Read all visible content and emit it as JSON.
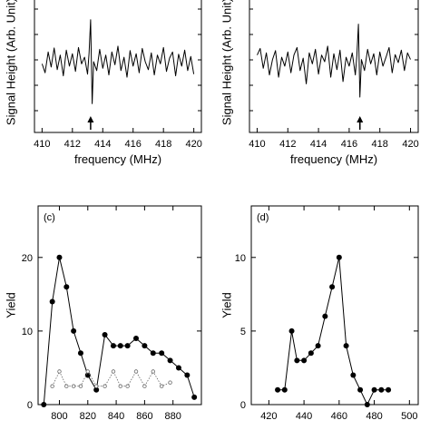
{
  "colors": {
    "line": "#000000",
    "secondary": "#666666",
    "frame": "#000000",
    "background": "#ffffff"
  },
  "chart_data": [
    {
      "panel": "a",
      "type": "line",
      "xlabel": "frequency (MHz)",
      "ylabel": "Signal Height (Arb. Unit)",
      "xlim": [
        409.5,
        420.5
      ],
      "xticks": [
        410,
        412,
        414,
        416,
        418,
        420
      ],
      "grid": false,
      "annotations": [
        {
          "type": "arrow",
          "x": 413.2
        }
      ],
      "series": [
        {
          "x": [
            410.0,
            410.2,
            410.4,
            410.6,
            410.8,
            411.0,
            411.2,
            411.4,
            411.6,
            411.8,
            412.0,
            412.2,
            412.4,
            412.6,
            412.8,
            413.0,
            413.1,
            413.2,
            413.3,
            413.4,
            413.6,
            413.8,
            414.0,
            414.2,
            414.4,
            414.6,
            414.8,
            415.0,
            415.2,
            415.4,
            415.6,
            415.8,
            416.0,
            416.2,
            416.4,
            416.6,
            416.8,
            417.0,
            417.2,
            417.4,
            417.6,
            417.8,
            418.0,
            418.2,
            418.4,
            418.6,
            418.8,
            419.0,
            419.2,
            419.4,
            419.6,
            419.8,
            420.0
          ],
          "values": [
            0.35,
            0.15,
            0.62,
            0.28,
            0.71,
            0.22,
            0.55,
            0.08,
            0.66,
            0.3,
            0.58,
            0.18,
            0.72,
            0.35,
            0.5,
            0.12,
            0.6,
            1.35,
            -0.55,
            0.4,
            0.2,
            0.68,
            0.25,
            0.55,
            0.1,
            0.62,
            0.33,
            0.75,
            0.2,
            0.5,
            0.05,
            0.65,
            0.3,
            0.58,
            0.15,
            0.7,
            0.4,
            0.22,
            0.6,
            0.1,
            0.55,
            0.35,
            0.72,
            0.18,
            0.48,
            0.62,
            0.08,
            0.57,
            0.3,
            0.66,
            0.2,
            0.52,
            0.12
          ]
        }
      ]
    },
    {
      "panel": "b",
      "type": "line",
      "xlabel": "frequency (MHz)",
      "ylabel": "Signal Height (Arb. Unit)",
      "xlim": [
        409.5,
        420.5
      ],
      "xticks": [
        410,
        412,
        414,
        416,
        418,
        420
      ],
      "grid": false,
      "annotations": [
        {
          "type": "arrow",
          "x": 416.7
        }
      ],
      "series": [
        {
          "x": [
            410.0,
            410.2,
            410.4,
            410.6,
            410.8,
            411.0,
            411.2,
            411.4,
            411.6,
            411.8,
            412.0,
            412.2,
            412.4,
            412.6,
            412.8,
            413.0,
            413.2,
            413.4,
            413.6,
            413.8,
            414.0,
            414.2,
            414.4,
            414.6,
            414.8,
            415.0,
            415.2,
            415.4,
            415.6,
            415.8,
            416.0,
            416.2,
            416.4,
            416.5,
            416.6,
            416.7,
            416.8,
            417.0,
            417.2,
            417.4,
            417.6,
            417.8,
            418.0,
            418.2,
            418.4,
            418.6,
            418.8,
            419.0,
            419.2,
            419.4,
            419.6,
            419.8,
            420.0
          ],
          "values": [
            0.55,
            0.7,
            0.25,
            0.6,
            0.1,
            0.45,
            0.65,
            0.05,
            0.5,
            0.3,
            0.62,
            0.15,
            0.55,
            0.72,
            0.2,
            0.48,
            -0.1,
            0.6,
            0.35,
            0.68,
            0.12,
            0.55,
            0.4,
            0.75,
            0.05,
            0.58,
            0.22,
            0.66,
            -0.05,
            0.5,
            0.3,
            0.6,
            0.1,
            0.55,
            1.25,
            -0.4,
            0.45,
            0.2,
            0.68,
            0.35,
            0.58,
            0.1,
            0.62,
            0.3,
            0.5,
            0.72,
            0.15,
            0.56,
            0.38,
            0.66,
            0.2,
            0.6,
            0.45
          ]
        }
      ]
    },
    {
      "panel": "c",
      "panel_label": "(c)",
      "type": "line",
      "ylabel": "Yield",
      "xlim": [
        785,
        900
      ],
      "ylim": [
        0,
        27
      ],
      "xticks": [
        800,
        820,
        840,
        860,
        880
      ],
      "yticks": [
        0,
        10,
        20
      ],
      "grid": false,
      "series": [
        {
          "style": "solid-filled-circles",
          "x": [
            789,
            795,
            800,
            805,
            810,
            815,
            820,
            826,
            832,
            838,
            843,
            848,
            854,
            860,
            866,
            872,
            878,
            884,
            890,
            895
          ],
          "values": [
            0,
            14,
            20,
            16,
            10,
            7,
            4,
            2,
            9.5,
            8,
            8,
            8,
            9,
            8,
            7,
            7,
            6,
            5,
            4,
            1
          ]
        },
        {
          "style": "dotted-open-circles",
          "x": [
            795,
            800,
            805,
            810,
            815,
            820,
            826,
            832,
            838,
            843,
            848,
            854,
            860,
            866,
            872,
            878
          ],
          "values": [
            2.5,
            4.5,
            2.5,
            2.5,
            2.5,
            4.5,
            2.5,
            2.5,
            4.5,
            2.5,
            2.5,
            4.5,
            2.5,
            4.5,
            2.5,
            3
          ]
        }
      ]
    },
    {
      "panel": "d",
      "panel_label": "(d)",
      "type": "line",
      "ylabel": "Yield",
      "xlim": [
        410,
        505
      ],
      "ylim": [
        0,
        13.5
      ],
      "xticks": [
        420,
        440,
        460,
        480,
        500
      ],
      "yticks": [
        0,
        5,
        10
      ],
      "grid": false,
      "series": [
        {
          "style": "solid-filled-circles",
          "x": [
            425,
            429,
            433,
            436,
            440,
            444,
            448,
            452,
            456,
            460,
            464,
            468,
            472,
            476,
            480,
            484,
            488
          ],
          "values": [
            1,
            1,
            5,
            3,
            3,
            3.5,
            4,
            6,
            8,
            10,
            4,
            2,
            1,
            0,
            1,
            1,
            1
          ]
        }
      ]
    }
  ]
}
